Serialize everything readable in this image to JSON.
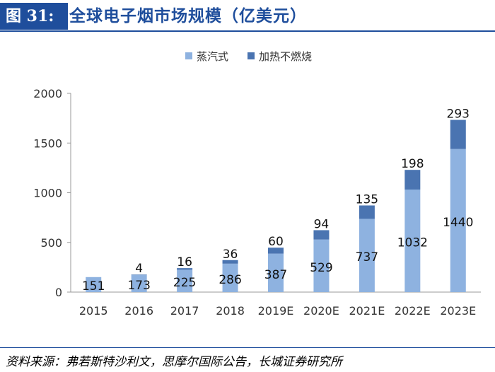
{
  "header": {
    "figure_label": "图 31:",
    "title": "全球电子烟市场规模（亿美元）"
  },
  "source": "资料来源：弗若斯特沙利文，思摩尔国际公告，长城证券研究所",
  "colors": {
    "vapor": "#8eb2e0",
    "heated": "#4a74b1",
    "title": "#1f4e9c"
  },
  "chart_data": {
    "type": "bar",
    "stacked": true,
    "title": "全球电子烟市场规模（亿美元）",
    "categories": [
      "2015",
      "2016",
      "2017",
      "2018",
      "2019E",
      "2020E",
      "2021E",
      "2022E",
      "2023E"
    ],
    "series": [
      {
        "name": "蒸汽式",
        "values": [
          151,
          173,
          225,
          286,
          387,
          529,
          737,
          1032,
          1440
        ]
      },
      {
        "name": "加热不燃烧",
        "values": [
          0,
          4,
          16,
          36,
          60,
          94,
          135,
          198,
          293
        ]
      }
    ],
    "series_labels": [
      [
        "151",
        "173",
        "225",
        "286",
        "387",
        "529",
        "737",
        "1032",
        "1440"
      ],
      [
        "",
        "4",
        "16",
        "36",
        "60",
        "94",
        "135",
        "198",
        "293"
      ]
    ],
    "yticks": [
      0,
      500,
      1000,
      1500,
      2000
    ],
    "ylim": [
      0,
      2000
    ],
    "xlabel": "",
    "ylabel": "",
    "legend_position": "top"
  }
}
